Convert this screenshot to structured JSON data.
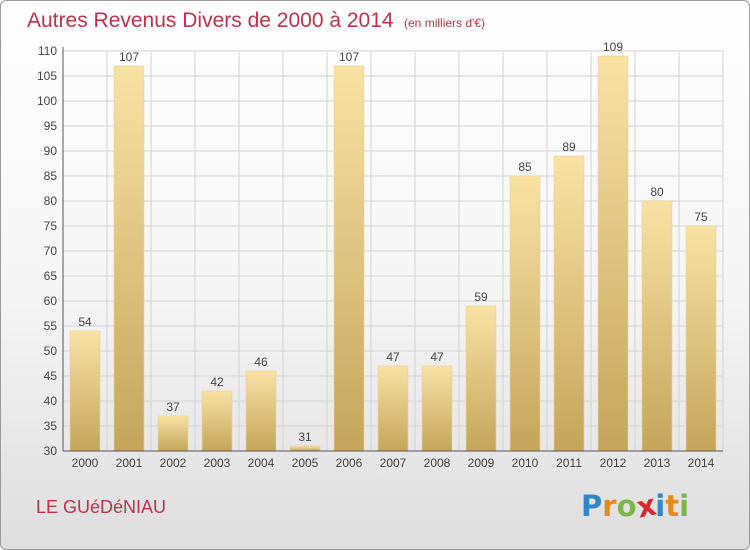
{
  "title": "Autres Revenus Divers de 2000 à 2014",
  "unit": "(en milliers d'€)",
  "commune": "LE GUéDéNIAU",
  "logo": {
    "letters": [
      "P",
      "r",
      "o",
      "x",
      "i",
      "t",
      "i"
    ],
    "colors": [
      "#2f86c8",
      "#e8891e",
      "#7ab648",
      "#d6282f",
      "#2f86c8",
      "#e8891e",
      "#7ab648"
    ]
  },
  "colors": {
    "title": "#c0304a",
    "bar_light": "#f7dfa0",
    "bar_dark": "#c8aa60"
  },
  "chart_data": {
    "type": "bar",
    "title": "Autres Revenus Divers de 2000 à 2014",
    "categories": [
      "2000",
      "2001",
      "2002",
      "2003",
      "2004",
      "2005",
      "2006",
      "2007",
      "2008",
      "2009",
      "2010",
      "2011",
      "2012",
      "2013",
      "2014"
    ],
    "values": [
      54,
      107,
      37,
      42,
      46,
      31,
      107,
      47,
      47,
      59,
      85,
      89,
      109,
      80,
      75
    ],
    "ylim": [
      30,
      110
    ],
    "yticks": [
      30,
      35,
      40,
      45,
      50,
      55,
      60,
      65,
      70,
      75,
      80,
      85,
      90,
      95,
      100,
      105,
      110
    ],
    "grid": true,
    "xlabel": "",
    "ylabel": ""
  }
}
